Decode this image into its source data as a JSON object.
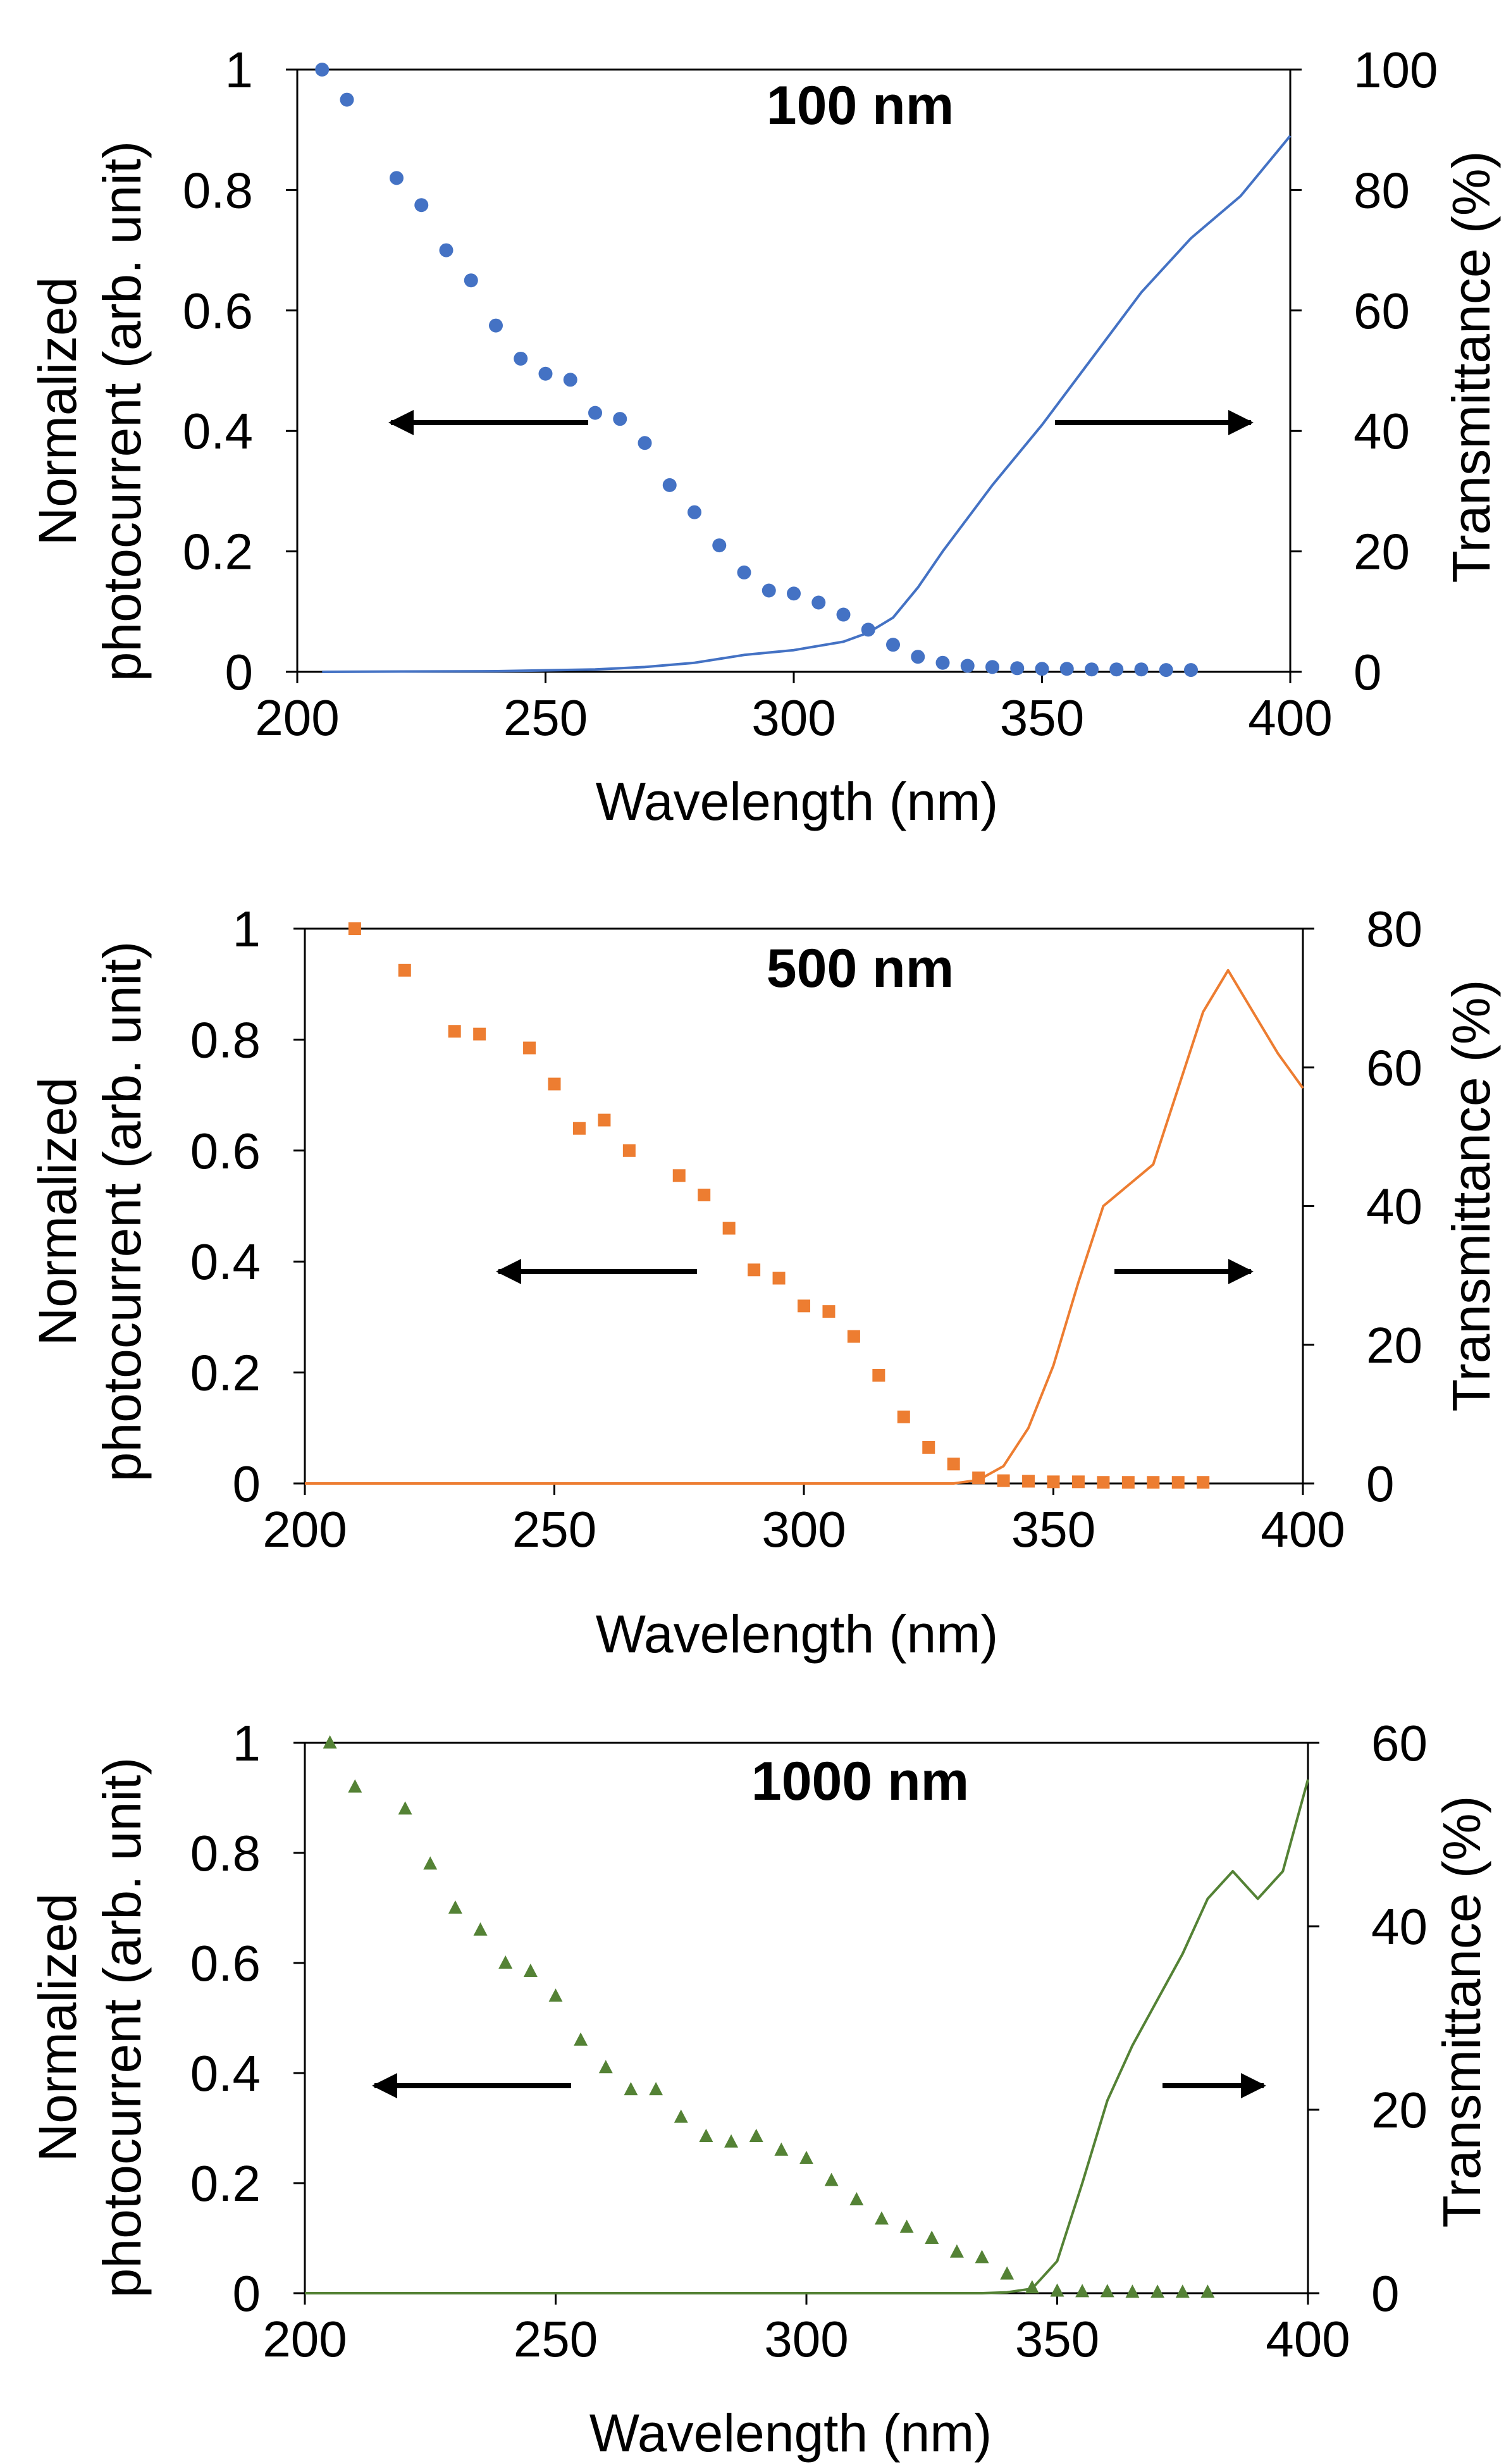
{
  "chart_data": [
    {
      "type": "scatter",
      "title": "100 nm",
      "xlabel": "Wavelength (nm)",
      "ylabel_left": [
        "Normalized",
        "photocurrent (arb. unit)"
      ],
      "ylabel_right": "Transmittance (%)",
      "xlim": [
        200,
        400
      ],
      "ylim_left": [
        0,
        1
      ],
      "ylim_right": [
        0,
        100
      ],
      "x_ticks": [
        "200",
        "250",
        "300",
        "350",
        "400"
      ],
      "y_ticks_left": [
        "0",
        "0.2",
        "0.4",
        "0.6",
        "0.8",
        "1"
      ],
      "y_ticks_right": [
        "0",
        "20",
        "40",
        "60",
        "80",
        "100"
      ],
      "color": "#4472C4",
      "marker": "circle",
      "series": [
        {
          "name": "Normalized photocurrent",
          "axis": "left",
          "x": [
            205,
            210,
            220,
            225,
            230,
            235,
            240,
            245,
            250,
            255,
            260,
            265,
            270,
            275,
            280,
            285,
            290,
            295,
            300,
            305,
            310,
            315,
            320,
            325,
            330,
            335,
            340,
            345,
            350,
            355,
            360,
            365,
            370,
            375,
            380
          ],
          "values": [
            1.0,
            0.95,
            0.82,
            0.775,
            0.7,
            0.65,
            0.575,
            0.52,
            0.495,
            0.485,
            0.43,
            0.42,
            0.38,
            0.31,
            0.265,
            0.21,
            0.165,
            0.135,
            0.13,
            0.115,
            0.095,
            0.07,
            0.045,
            0.025,
            0.015,
            0.01,
            0.008,
            0.006,
            0.005,
            0.005,
            0.004,
            0.004,
            0.004,
            0.003,
            0.003
          ]
        },
        {
          "name": "Transmittance",
          "axis": "right",
          "x": [
            205,
            240,
            260,
            270,
            280,
            290,
            300,
            310,
            315,
            320,
            325,
            330,
            340,
            350,
            360,
            370,
            380,
            390,
            400
          ],
          "values": [
            0,
            0.1,
            0.4,
            0.8,
            1.5,
            2.8,
            3.6,
            5.0,
            6.5,
            9.0,
            14,
            20,
            31,
            41,
            52,
            63,
            72,
            79,
            89
          ]
        }
      ],
      "arrows": [
        "left",
        "right"
      ]
    },
    {
      "type": "scatter",
      "title": "500 nm",
      "xlabel": "Wavelength (nm)",
      "ylabel_left": [
        "Normalized",
        "photocurrent (arb. unit)"
      ],
      "ylabel_right": "Transmittance (%)",
      "xlim": [
        200,
        400
      ],
      "ylim_left": [
        0,
        1
      ],
      "ylim_right": [
        0,
        80
      ],
      "x_ticks": [
        "200",
        "250",
        "300",
        "350",
        "400"
      ],
      "y_ticks_left": [
        "0",
        "0.2",
        "0.4",
        "0.6",
        "0.8",
        "1"
      ],
      "y_ticks_right": [
        "0",
        "20",
        "40",
        "60",
        "80"
      ],
      "color": "#ED7D31",
      "marker": "square",
      "series": [
        {
          "name": "Normalized photocurrent",
          "axis": "left",
          "x": [
            210,
            220,
            230,
            235,
            245,
            250,
            255,
            260,
            265,
            275,
            280,
            285,
            290,
            295,
            300,
            305,
            310,
            315,
            320,
            325,
            330,
            335,
            340,
            345,
            350,
            355,
            360,
            365,
            370,
            375,
            380
          ],
          "values": [
            1.0,
            0.925,
            0.815,
            0.81,
            0.785,
            0.72,
            0.64,
            0.655,
            0.6,
            0.555,
            0.52,
            0.46,
            0.385,
            0.37,
            0.32,
            0.31,
            0.265,
            0.195,
            0.12,
            0.065,
            0.035,
            0.01,
            0.005,
            0.004,
            0.003,
            0.003,
            0.002,
            0.002,
            0.002,
            0.002,
            0.002
          ]
        },
        {
          "name": "Transmittance",
          "axis": "right",
          "x": [
            200,
            320,
            330,
            335,
            340,
            345,
            350,
            355,
            360,
            365,
            370,
            375,
            380,
            385,
            390,
            395,
            400
          ],
          "values": [
            0,
            0,
            0,
            0.5,
            2.5,
            8,
            17,
            29,
            40,
            43,
            46,
            57,
            68,
            74,
            68,
            62,
            57
          ]
        }
      ],
      "arrows": [
        "left",
        "right"
      ]
    },
    {
      "type": "scatter",
      "title": "1000 nm",
      "xlabel": "Wavelength (nm)",
      "ylabel_left": [
        "Normalized",
        "photocurrent (arb. unit)"
      ],
      "ylabel_right": "Transmittance (%)",
      "xlim": [
        200,
        400
      ],
      "ylim_left": [
        0,
        1
      ],
      "ylim_right": [
        0,
        60
      ],
      "x_ticks": [
        "200",
        "250",
        "300",
        "350",
        "400"
      ],
      "y_ticks_left": [
        "0",
        "0.2",
        "0.4",
        "0.6",
        "0.8",
        "1"
      ],
      "y_ticks_right": [
        "0",
        "20",
        "40",
        "60"
      ],
      "color": "#548235",
      "marker": "triangle",
      "series": [
        {
          "name": "Normalized photocurrent",
          "axis": "left",
          "x": [
            205,
            210,
            220,
            225,
            230,
            235,
            240,
            245,
            250,
            255,
            260,
            265,
            270,
            275,
            280,
            285,
            290,
            295,
            300,
            305,
            310,
            315,
            320,
            325,
            330,
            335,
            340,
            345,
            350,
            355,
            360,
            365,
            370,
            375,
            380
          ],
          "values": [
            1.0,
            0.92,
            0.88,
            0.78,
            0.7,
            0.66,
            0.6,
            0.585,
            0.54,
            0.46,
            0.41,
            0.37,
            0.37,
            0.32,
            0.285,
            0.275,
            0.285,
            0.26,
            0.245,
            0.205,
            0.17,
            0.135,
            0.12,
            0.1,
            0.075,
            0.065,
            0.035,
            0.01,
            0.004,
            0.003,
            0.003,
            0.002,
            0.002,
            0.002,
            0.002
          ]
        },
        {
          "name": "Transmittance",
          "axis": "right",
          "x": [
            200,
            335,
            340,
            345,
            350,
            355,
            360,
            365,
            370,
            375,
            380,
            385,
            390,
            395,
            400
          ],
          "values": [
            0,
            0,
            0.1,
            0.5,
            3.5,
            12,
            21,
            27,
            32,
            37,
            43,
            46,
            43,
            46,
            56
          ]
        }
      ],
      "arrows": [
        "left",
        "right"
      ]
    }
  ]
}
